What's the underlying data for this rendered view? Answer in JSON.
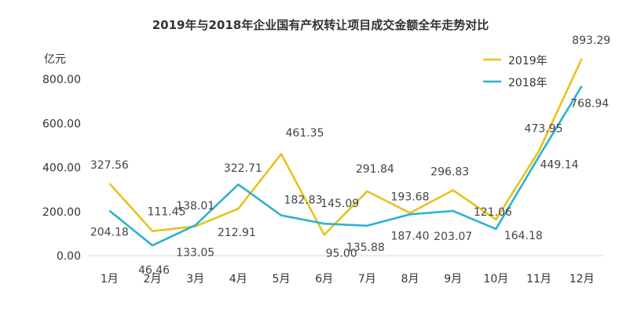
{
  "chart_data": {
    "type": "line",
    "title": "2019年与2018年企业国有产权转让项目成交金额全年走势对比",
    "ylabel": "亿元",
    "xlabel": "",
    "categories": [
      "1月",
      "2月",
      "3月",
      "4月",
      "5月",
      "6月",
      "7月",
      "8月",
      "9月",
      "10月",
      "11月",
      "12月"
    ],
    "ylim": [
      0,
      900
    ],
    "yticks": [
      "0.00",
      "200.00",
      "400.00",
      "600.00",
      "800.00"
    ],
    "ytick_values": [
      0,
      200,
      400,
      600,
      800
    ],
    "grid": false,
    "legend_position": "top-right",
    "series": [
      {
        "name": "2019年",
        "color": "#E8C21B",
        "values": [
          327.56,
          111.45,
          133.05,
          212.91,
          461.35,
          95.0,
          291.84,
          193.68,
          296.83,
          164.18,
          473.95,
          893.29
        ],
        "labels": [
          "327.56",
          "111.45",
          "133.05",
          "212.91",
          "461.35",
          "95.00",
          "291.84",
          "193.68",
          "296.83",
          "164.18",
          "473.95",
          "893.29"
        ]
      },
      {
        "name": "2018年",
        "color": "#2BB3CF",
        "values": [
          204.18,
          46.46,
          138.01,
          322.71,
          182.83,
          145.09,
          135.88,
          187.4,
          203.07,
          121.06,
          449.14,
          768.94
        ],
        "labels": [
          "204.18",
          "46.46",
          "138.01",
          "322.71",
          "182.83",
          "145.09",
          "135.88",
          "187.40",
          "203.07",
          "121.06",
          "449.14",
          "768.94"
        ]
      }
    ]
  }
}
